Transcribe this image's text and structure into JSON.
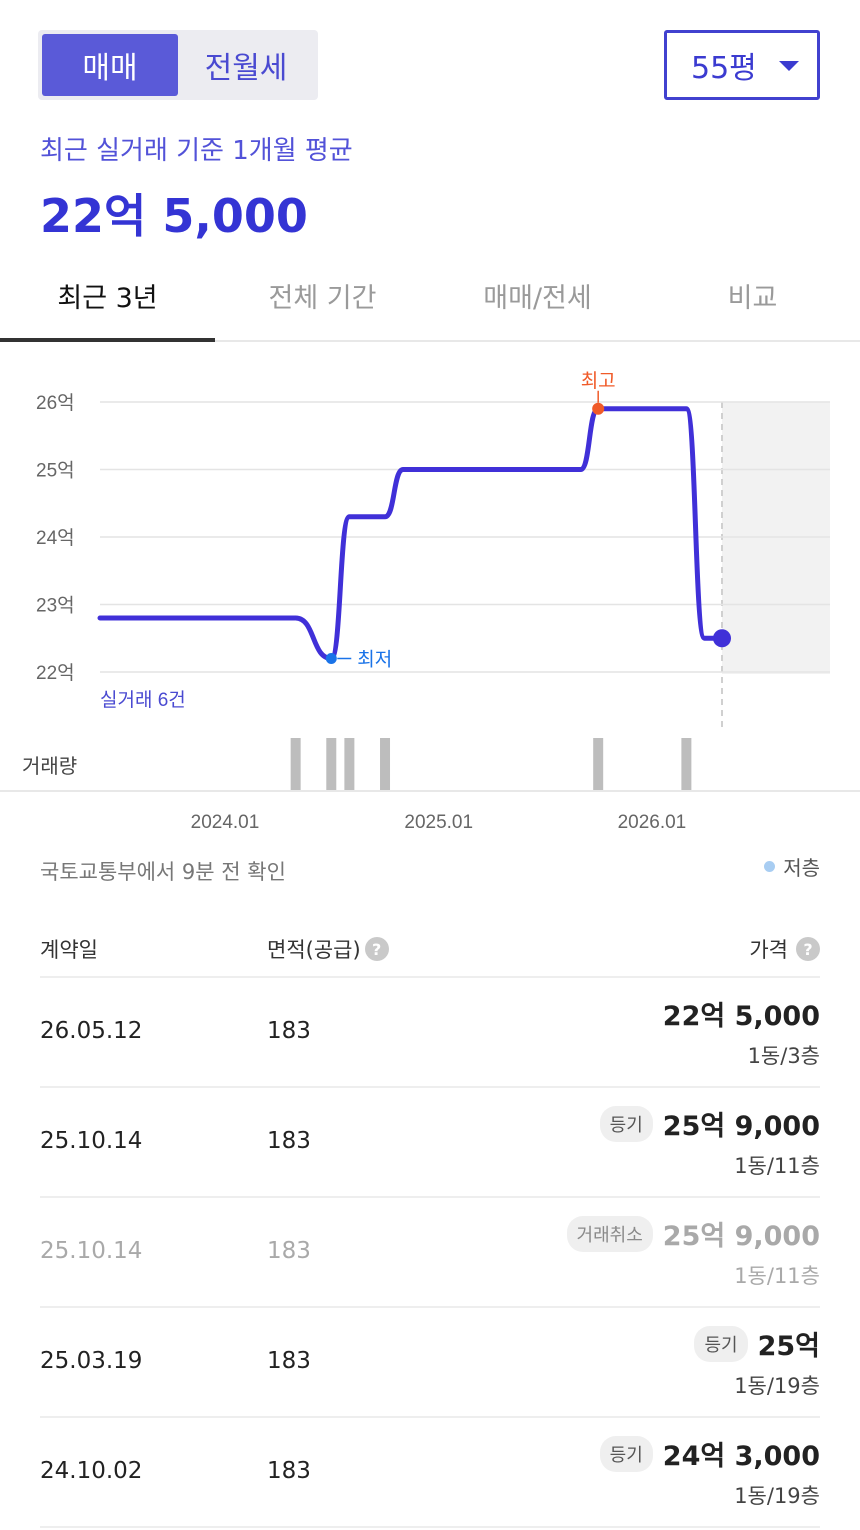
{
  "segment": {
    "sale": "매매",
    "rent": "전월세",
    "active": "sale"
  },
  "area_select": {
    "value": "55평"
  },
  "summary": {
    "label": "최근 실거래 기준 1개월 평균",
    "price": "22억 5,000"
  },
  "tabs": [
    {
      "label": "최근 3년",
      "active": true
    },
    {
      "label": "전체 기간",
      "active": false
    },
    {
      "label": "매매/전세",
      "active": false
    },
    {
      "label": "비교",
      "active": false
    }
  ],
  "chart_data": {
    "type": "line",
    "y_unit": "억",
    "y_ticks": [
      "26억",
      "25억",
      "24억",
      "23억",
      "22억"
    ],
    "ylim": [
      22,
      26
    ],
    "x_ticks": [
      "2024.01",
      "2025.01",
      "2026.01"
    ],
    "series": [
      {
        "values": [
          {
            "x": "2023-06",
            "y": 22.8
          },
          {
            "x": "2024-05",
            "y": 22.8
          },
          {
            "x": "2024-07",
            "y": 22.2
          },
          {
            "x": "2024-08",
            "y": 24.3
          },
          {
            "x": "2024-10",
            "y": 24.3
          },
          {
            "x": "2024-11",
            "y": 25.0
          },
          {
            "x": "2025-09",
            "y": 25.0
          },
          {
            "x": "2025-10",
            "y": 25.9
          },
          {
            "x": "2026-03",
            "y": 25.9
          },
          {
            "x": "2026-04",
            "y": 22.5
          },
          {
            "x": "2026-05",
            "y": 22.5
          }
        ]
      }
    ],
    "annotations": {
      "max": "최고",
      "min": "최저"
    },
    "count_label": "실거래 6건",
    "volume_label": "거래량",
    "volume_bars": [
      "2024-05",
      "2024-07",
      "2024-08",
      "2024-10",
      "2025-10",
      "2026-03"
    ],
    "grid": true
  },
  "source": "국토교통부에서 9분 전 확인",
  "legend": {
    "low_floor": "저층"
  },
  "table": {
    "headers": {
      "date": "계약일",
      "area": "면적(공급)",
      "price": "가격"
    },
    "rows": [
      {
        "date": "26.05.12",
        "area": "183",
        "badge": "",
        "price": "22억 5,000",
        "floor": "1동/3층",
        "cancelled": false
      },
      {
        "date": "25.10.14",
        "area": "183",
        "badge": "등기",
        "price": "25억 9,000",
        "floor": "1동/11층",
        "cancelled": false
      },
      {
        "date": "25.10.14",
        "area": "183",
        "badge": "거래취소",
        "price": "25억 9,000",
        "floor": "1동/11층",
        "cancelled": true
      },
      {
        "date": "25.03.19",
        "area": "183",
        "badge": "등기",
        "price": "25억",
        "floor": "1동/19층",
        "cancelled": false
      },
      {
        "date": "24.10.02",
        "area": "183",
        "badge": "등기",
        "price": "24억 3,000",
        "floor": "1동/19층",
        "cancelled": false
      }
    ]
  },
  "colors": {
    "accent": "#3b3bd0",
    "line": "#4030d8",
    "max_marker": "#f05a28",
    "min_marker": "#1a73e8",
    "volume": "#bdbdbd"
  }
}
